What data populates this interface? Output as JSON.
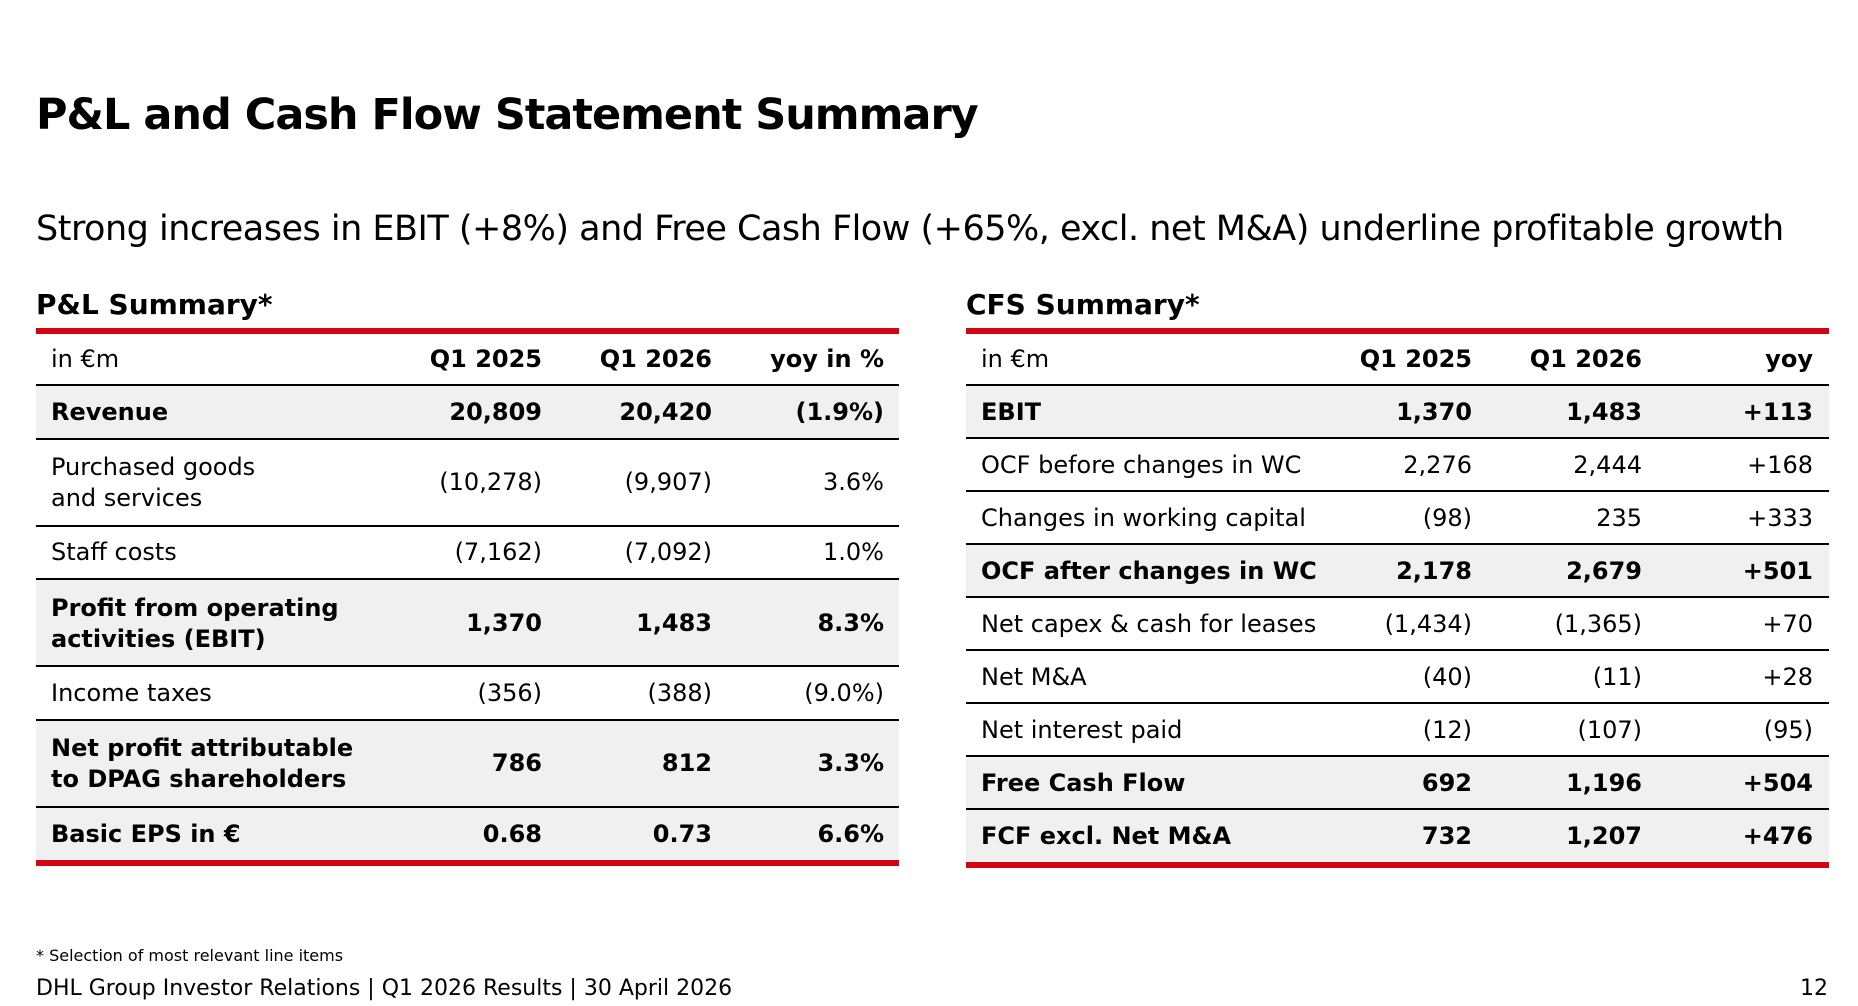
{
  "header": {
    "title": "P&L and Cash Flow Statement Summary",
    "subtitle": "Strong increases in EBIT (+8%) and Free Cash Flow (+65%, excl. net M&A) underline profitable growth"
  },
  "tables": [
    {
      "title": "P&L Summary*",
      "columns": [
        "in €m",
        "Q1 2025",
        "Q1 2026",
        "yoy in %"
      ],
      "rows": [
        {
          "label": [
            "Revenue"
          ],
          "values": [
            "20,809",
            "20,420",
            "(1.9%)"
          ],
          "bold": true
        },
        {
          "label": [
            "Purchased goods",
            "and services"
          ],
          "values": [
            "(10,278)",
            "(9,907)",
            "3.6%"
          ],
          "bold": false
        },
        {
          "label": [
            "Staff costs"
          ],
          "values": [
            "(7,162)",
            "(7,092)",
            "1.0%"
          ],
          "bold": false
        },
        {
          "label": [
            "Profit from operating",
            "activities (EBIT)"
          ],
          "values": [
            "1,370",
            "1,483",
            "8.3%"
          ],
          "bold": true
        },
        {
          "label": [
            "Income taxes"
          ],
          "values": [
            "(356)",
            "(388)",
            "(9.0%)"
          ],
          "bold": false
        },
        {
          "label": [
            "Net profit attributable",
            "to DPAG shareholders"
          ],
          "values": [
            "786",
            "812",
            "3.3%"
          ],
          "bold": true
        },
        {
          "label": [
            "Basic EPS in €"
          ],
          "values": [
            "0.68",
            "0.73",
            "6.6%"
          ],
          "bold": true
        }
      ]
    },
    {
      "title": "CFS Summary*",
      "columns": [
        "in €m",
        "Q1 2025",
        "Q1 2026",
        "yoy"
      ],
      "rows": [
        {
          "label": [
            "EBIT"
          ],
          "values": [
            "1,370",
            "1,483",
            "+113"
          ],
          "bold": true
        },
        {
          "label": [
            "OCF before changes in WC"
          ],
          "values": [
            "2,276",
            "2,444",
            "+168"
          ],
          "bold": false
        },
        {
          "label": [
            "Changes in working capital"
          ],
          "values": [
            "(98)",
            "235",
            "+333"
          ],
          "bold": false
        },
        {
          "label": [
            "OCF after changes in WC"
          ],
          "values": [
            "2,178",
            "2,679",
            "+501"
          ],
          "bold": true
        },
        {
          "label": [
            "Net capex & cash for leases"
          ],
          "values": [
            "(1,434)",
            "(1,365)",
            "+70"
          ],
          "bold": false
        },
        {
          "label": [
            "Net M&A"
          ],
          "values": [
            "(40)",
            "(11)",
            "+28"
          ],
          "bold": false
        },
        {
          "label": [
            "Net interest paid"
          ],
          "values": [
            "(12)",
            "(107)",
            "(95)"
          ],
          "bold": false
        },
        {
          "label": [
            "Free Cash Flow"
          ],
          "values": [
            "692",
            "1,196",
            "+504"
          ],
          "bold": true
        },
        {
          "label": [
            "FCF excl. Net M&A"
          ],
          "values": [
            "732",
            "1,207",
            "+476"
          ],
          "bold": true
        }
      ]
    }
  ],
  "footer": {
    "note": "* Selection of most relevant line items",
    "source": "DHL Group Investor Relations | Q1 2026 Results | 30 April 2026",
    "page": "12"
  }
}
